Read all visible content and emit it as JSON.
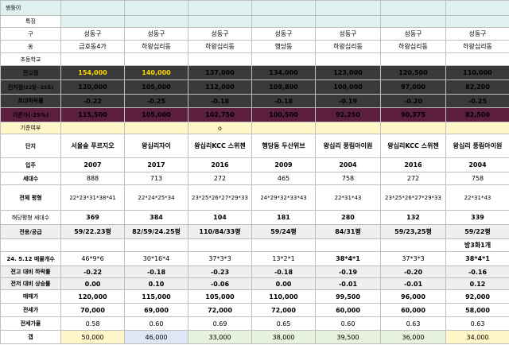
{
  "columns": 7,
  "title_row": {
    "label": "쌍둥이"
  },
  "feature_row": {
    "label": "특징"
  },
  "rows": {
    "gu": {
      "label": "구",
      "values": [
        "성동구",
        "성동구",
        "성동구",
        "성동구",
        "성동구",
        "성동구",
        "성동구"
      ]
    },
    "dong": {
      "label": "동",
      "values": [
        "금호동4가",
        "하왕십리동",
        "하왕십리동",
        "행당동",
        "하왕십리동",
        "하왕십리동",
        "하왕십리동"
      ]
    },
    "school": {
      "label": "초등학교"
    },
    "peak": {
      "label": "전고점",
      "values": [
        "154,000",
        "140,000",
        "137,000",
        "134,000",
        "123,000",
        "120,500",
        "110,000"
      ]
    },
    "low": {
      "label": "전저점",
      "label_sub": "(22말~23초)",
      "values": [
        "120,000",
        "105,000",
        "112,000",
        "109,800",
        "100,000",
        "97,000",
        "82,200"
      ]
    },
    "max_drop": {
      "label": "최대하락률",
      "values": [
        "-0.22",
        "-0.25",
        "-0.18",
        "-0.18",
        "-0.19",
        "-0.20",
        "-0.25"
      ]
    },
    "base_price": {
      "label": "기준가(-25%)",
      "values": [
        "115,500",
        "105,000",
        "102,750",
        "100,500",
        "92,250",
        "90,375",
        "82,500"
      ]
    },
    "base_yn": {
      "label": "기준여부",
      "values": [
        "",
        "",
        "o",
        "",
        "",
        "",
        ""
      ]
    },
    "complex": {
      "label": "단지",
      "values": [
        "서울숲\n푸르지오",
        "왕십리자이",
        "왕십리KCC\n스위첸",
        "행당동\n두산위브",
        "왕십리\n풍림아이원",
        "왕십리KCC\n스위첸",
        "왕십리\n풍림아이원"
      ]
    },
    "move_in": {
      "label": "입주",
      "values": [
        "2007",
        "2017",
        "2016",
        "2009",
        "2004",
        "2016",
        "2004"
      ]
    },
    "households": {
      "label": "세대수",
      "values": [
        "888",
        "713",
        "272",
        "465",
        "758",
        "272",
        "758"
      ]
    },
    "pyeong_all": {
      "label": "전체 평형",
      "values": [
        "22*23*31*38*41",
        "22*24*25*34",
        "23*25*26*27*29*33",
        "24*29*32*33*43",
        "22*31*43",
        "23*25*26*27*29*33",
        "22*31*43"
      ]
    },
    "pyeong_households": {
      "label": "해당평형 세대수",
      "values": [
        "369",
        "384",
        "104",
        "181",
        "280",
        "132",
        "339"
      ]
    },
    "area": {
      "label": "전용/공급",
      "values": [
        "59/22.23평",
        "82/59/24.25평",
        "110/84/33평",
        "59/24평",
        "84/31평",
        "59/23,25평",
        "59/22평"
      ]
    },
    "extra": {
      "values": [
        "",
        "",
        "",
        "",
        "",
        "",
        "방3화1개"
      ]
    },
    "listings": {
      "label": "24. 5.12 매물개수",
      "values": [
        "46*9*6",
        "30*16*4",
        "37*3*3",
        "13*2*1",
        "38*4*1",
        "37*3*3",
        "38*4*1"
      ]
    },
    "drop_from_peak": {
      "label": "전고 대비 하락률",
      "values": [
        "-0.22",
        "-0.18",
        "-0.23",
        "-0.18",
        "-0.19",
        "-0.20",
        "-0.16"
      ]
    },
    "rise_from_low": {
      "label": "전저 대비 상승률",
      "values": [
        "0.00",
        "0.10",
        "-0.06",
        "0.00",
        "-0.01",
        "-0.01",
        "0.12"
      ]
    },
    "sale_price": {
      "label": "매매가",
      "values": [
        "120,000",
        "115,000",
        "105,000",
        "110,000",
        "99,500",
        "96,000",
        "92,000"
      ]
    },
    "jeonse_price": {
      "label": "전세가",
      "values": [
        "70,000",
        "69,000",
        "72,000",
        "72,000",
        "60,000",
        "60,000",
        "58,000"
      ]
    },
    "jeonse_ratio": {
      "label": "전세가율",
      "values": [
        "0.58",
        "0.60",
        "0.69",
        "0.65",
        "0.60",
        "0.63",
        "0.63"
      ]
    },
    "gap": {
      "label": "갭",
      "values": [
        "50,000",
        "46,000",
        "33,000",
        "38,000",
        "39,500",
        "36,000",
        "34,000"
      ]
    }
  },
  "colors": {
    "mint": "#dff1ee",
    "dark": "#3a3a3a",
    "purple": "#5b1e3f",
    "yellow": "#fff6c9",
    "peak_highlight": "#ffd400",
    "blue_text": "#1f3fbf",
    "red_text": "#d02020"
  }
}
